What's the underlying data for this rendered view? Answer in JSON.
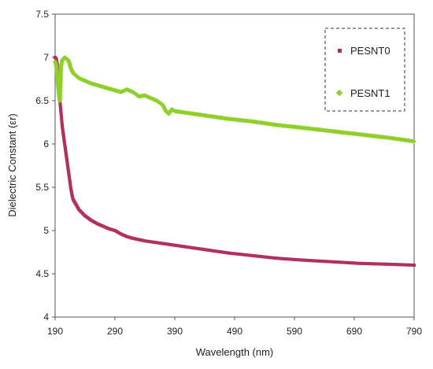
{
  "chart_data": {
    "type": "scatter",
    "title": "",
    "xlabel": "Wavelength (nm)",
    "ylabel": "Dielectric Constant (εr)",
    "xlim": [
      190,
      790
    ],
    "ylim": [
      4,
      7.5
    ],
    "x_ticks": [
      190,
      290,
      390,
      490,
      590,
      690,
      790
    ],
    "y_ticks": [
      4,
      4.5,
      5,
      5.5,
      6,
      6.5,
      7,
      7.5
    ],
    "x_tick_labels": [
      "190",
      "290",
      "390",
      "490",
      "590",
      "690",
      "790"
    ],
    "y_tick_labels": [
      "4",
      "4.5",
      "5",
      "5.5",
      "6",
      "6.5",
      "7",
      "7.5"
    ],
    "grid": false,
    "legend_position": "top-right",
    "series": [
      {
        "name": "PESNT0",
        "color": "#b03060",
        "marker": "square",
        "x": [
          190,
          192,
          194,
          196,
          198,
          200,
          202,
          204,
          206,
          208,
          210,
          212,
          214,
          216,
          218,
          220,
          225,
          230,
          240,
          250,
          260,
          270,
          280,
          290,
          300,
          310,
          320,
          340,
          360,
          380,
          400,
          420,
          450,
          480,
          520,
          560,
          600,
          650,
          700,
          750,
          790
        ],
        "y": [
          7.0,
          6.98,
          6.9,
          6.7,
          6.5,
          6.35,
          6.2,
          6.1,
          6.0,
          5.9,
          5.8,
          5.7,
          5.6,
          5.5,
          5.42,
          5.36,
          5.3,
          5.24,
          5.17,
          5.12,
          5.08,
          5.05,
          5.02,
          5.0,
          4.96,
          4.93,
          4.91,
          4.88,
          4.86,
          4.84,
          4.82,
          4.8,
          4.77,
          4.74,
          4.71,
          4.68,
          4.66,
          4.64,
          4.62,
          4.61,
          4.6
        ]
      },
      {
        "name": "PESNT1",
        "color": "#8fcf2a",
        "marker": "diamond",
        "x": [
          190,
          192,
          194,
          196,
          198,
          200,
          202,
          204,
          206,
          208,
          210,
          212,
          214,
          216,
          218,
          220,
          225,
          230,
          240,
          250,
          260,
          270,
          280,
          290,
          300,
          310,
          320,
          330,
          340,
          350,
          360,
          370,
          375,
          380,
          385,
          390,
          400,
          420,
          450,
          480,
          520,
          560,
          600,
          650,
          700,
          750,
          790
        ],
        "y": [
          6.95,
          6.9,
          6.75,
          6.6,
          6.5,
          6.9,
          6.97,
          6.98,
          7.0,
          6.99,
          6.98,
          6.97,
          6.93,
          6.88,
          6.85,
          6.82,
          6.79,
          6.76,
          6.73,
          6.7,
          6.68,
          6.66,
          6.64,
          6.62,
          6.6,
          6.63,
          6.6,
          6.55,
          6.56,
          6.53,
          6.5,
          6.45,
          6.38,
          6.35,
          6.4,
          6.38,
          6.37,
          6.35,
          6.32,
          6.29,
          6.26,
          6.22,
          6.19,
          6.15,
          6.11,
          6.07,
          6.03
        ]
      }
    ]
  }
}
